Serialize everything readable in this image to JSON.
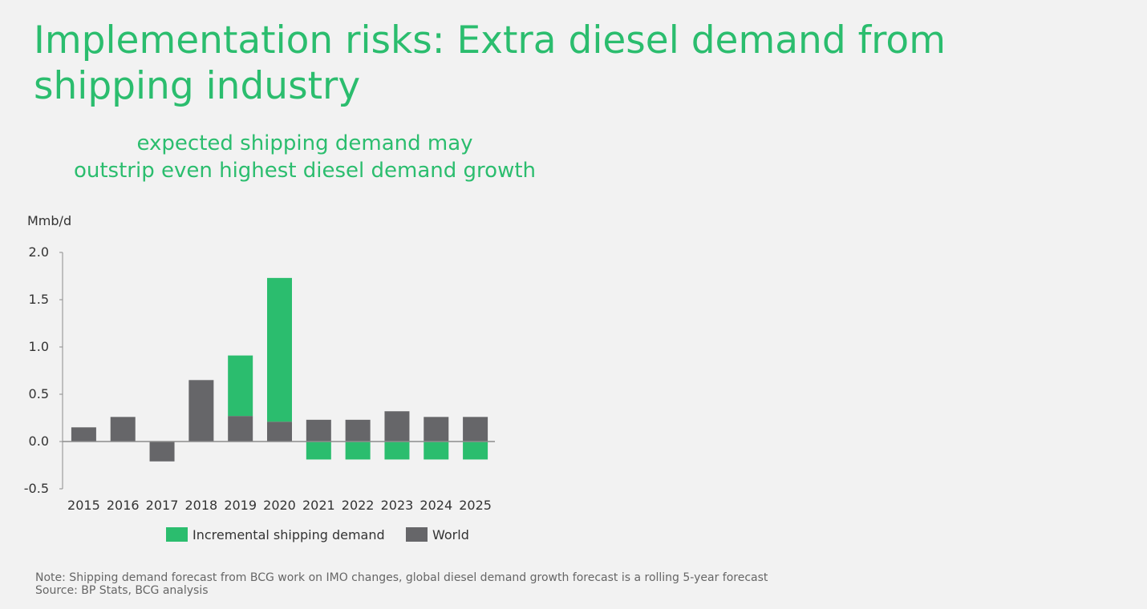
{
  "slide": {
    "title": "Implementation risks: Extra diesel demand from shipping industry",
    "subtitle_lines": [
      "expected shipping demand may",
      "outstrip even highest diesel demand growth"
    ],
    "note": "Note: Shipping demand forecast from BCG work on IMO changes, global diesel demand growth forecast is a rolling 5-year forecast",
    "source": "Source: BP Stats, BCG analysis"
  },
  "colors": {
    "shipping": "#2bbd6e",
    "world": "#666669",
    "axis": "#8c8c8c",
    "text": "#333333"
  },
  "chart_data": {
    "type": "bar",
    "stacked": true,
    "unit_label": "Mmb/d",
    "ylim": [
      -0.5,
      2.0
    ],
    "yticks": [
      "2.0",
      "1.5",
      "1.0",
      "0.5",
      "0.0",
      "-0.5"
    ],
    "ytick_values": [
      2.0,
      1.5,
      1.0,
      0.5,
      0.0,
      -0.5
    ],
    "grid": false,
    "legend_position": "bottom",
    "categories": [
      "2015",
      "2016",
      "2017",
      "2018",
      "2019",
      "2020",
      "2021",
      "2022",
      "2023",
      "2024",
      "2025"
    ],
    "series": [
      {
        "name": "Incremental shipping demand",
        "color_key": "shipping",
        "values": [
          0,
          0,
          0,
          0,
          0.64,
          1.52,
          -0.19,
          -0.19,
          -0.19,
          -0.19,
          -0.19
        ]
      },
      {
        "name": "World",
        "color_key": "world",
        "values": [
          0.15,
          0.26,
          -0.21,
          0.65,
          0.27,
          0.21,
          0.23,
          0.23,
          0.32,
          0.26,
          0.26
        ]
      }
    ]
  }
}
